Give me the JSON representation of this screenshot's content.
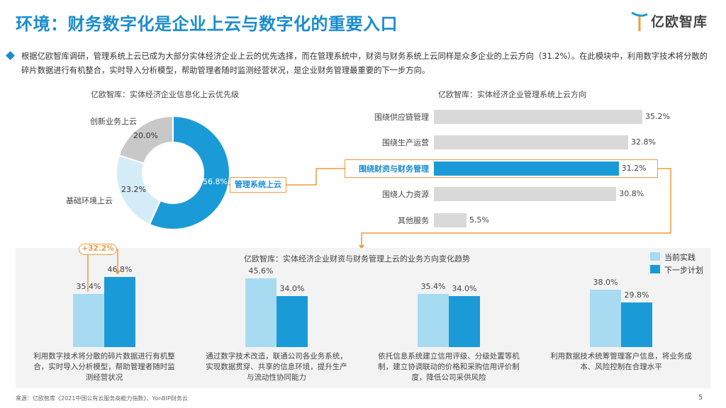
{
  "header": {
    "title": "环境：财务数字化是企业上云与数字化的重要入口",
    "logo_text": "亿欧智库"
  },
  "intro": "根据亿欧智库调研，管理系统上云已成为大部分实体经济企业上云的优先选择，而在管理系统中，财资与财务系统上云同样是众多企业的上云方向（31.2%）。在此模块中，利用数字技术将分散的碎片数据进行有机整合，实时导入分析模型，帮助管理者随时监测经营状况，是企业财务管理最重要的下一步方向。",
  "colors": {
    "blue": "#1a9bd7",
    "light_blue": "#a6dbf2",
    "pale_blue": "#d4ecf8",
    "gray": "#c8c8c8",
    "orange": "#f09a3e",
    "panel": "#f3f3f3"
  },
  "chart_data": [
    {
      "type": "pie",
      "title": "亿欧智库：实体经济企业信息化上云优先级",
      "labels": [
        "管理系统上云",
        "基础环境上云",
        "创新业务上云"
      ],
      "values": [
        56.8,
        23.2,
        20.0
      ],
      "value_labels": [
        "56.8%",
        "23.2%",
        "20.0%"
      ],
      "colors": [
        "#1a9bd7",
        "#d4ecf8",
        "#c8c8c8"
      ]
    },
    {
      "type": "bar",
      "orientation": "horizontal",
      "title": "亿欧智库：实体经济企业管理系统上云方向",
      "categories": [
        "围绕供应链管理",
        "围绕生产运营",
        "围绕财资与财务管理",
        "围绕人力资源",
        "其他服务"
      ],
      "values": [
        35.2,
        32.8,
        31.2,
        30.8,
        5.5
      ],
      "value_labels": [
        "35.2%",
        "32.8%",
        "31.2%",
        "30.8%",
        "5.5%"
      ],
      "highlight_index": 2
    },
    {
      "type": "bar",
      "title": "亿欧智库：实体经济企业财资与财务管理上云的业务方向变化趋势",
      "categories": [
        "利用数字技术将分散的碎片数据进行有机整合，实时导入分析模型，帮助管理者随时监测经营状况",
        "通过数字技术改造，联通公司各业务系统，实现数据贯穿、共享的信息环境，提升生产与流动性协同能力",
        "依托信息系统建立信用评级、分级处置等机制，建立协调联动的价格和采购信用评价制度，降低公司采供风险",
        "利用数据技术统筹管理客户信息，将业务成本、风险控制在合理水平"
      ],
      "series": [
        {
          "name": "当前实践",
          "values": [
            35.4,
            45.6,
            35.4,
            38.0
          ],
          "value_labels": [
            "35.4%",
            "45.6%",
            "35.4%",
            "38.0%"
          ]
        },
        {
          "name": "下一步计划",
          "values": [
            46.8,
            34.0,
            34.0,
            29.8
          ],
          "value_labels": [
            "46.8%",
            "34.0%",
            "34.0%",
            "29.8%"
          ]
        }
      ],
      "annotation": "+32.2%"
    }
  ],
  "footer": {
    "source": "来源：亿欧智库《2021中国公有云服务商能力指数》、YonBIP财务云",
    "page": "5"
  }
}
